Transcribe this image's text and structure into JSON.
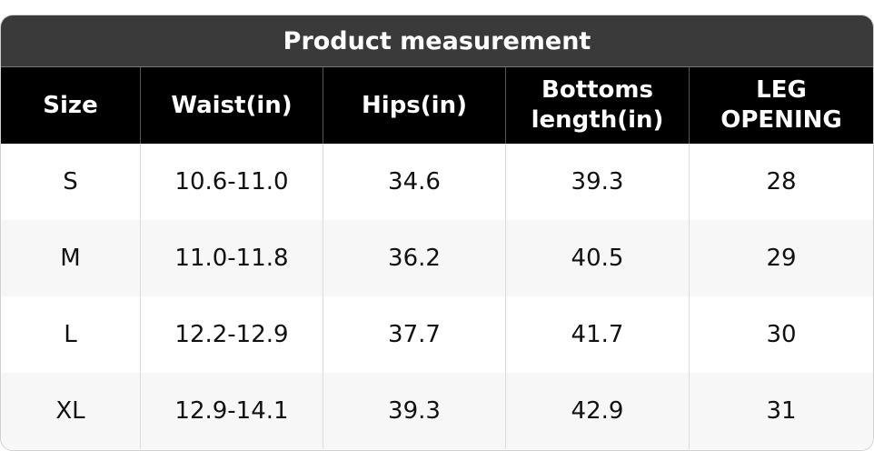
{
  "table": {
    "title": "Product measurement",
    "headers": [
      "Size",
      "Waist(in)",
      "Hips(in)",
      "Bottoms length(in)",
      "LEG OPENING"
    ],
    "rows": [
      [
        "S",
        "10.6-11.0",
        "34.6",
        "39.3",
        "28"
      ],
      [
        "M",
        "11.0-11.8",
        "36.2",
        "40.5",
        "29"
      ],
      [
        "L",
        "12.2-12.9",
        "37.7",
        "41.7",
        "30"
      ],
      [
        "XL",
        "12.9-14.1",
        "39.3",
        "42.9",
        "31"
      ]
    ]
  }
}
